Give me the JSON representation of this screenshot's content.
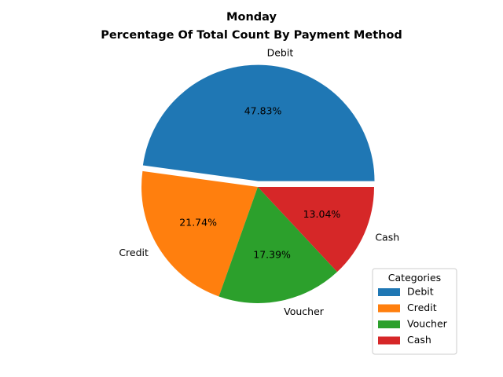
{
  "chart_data": {
    "type": "pie",
    "title": "Monday",
    "subtitle": "Percentage Of Total Count By Payment Method",
    "categories": [
      "Debit",
      "Credit",
      "Voucher",
      "Cash"
    ],
    "values": [
      47.83,
      21.74,
      17.39,
      13.04
    ],
    "percent_labels": [
      "47.83%",
      "21.74%",
      "17.39%",
      "13.04%"
    ],
    "colors": [
      "#1f77b4",
      "#ff7f0e",
      "#2ca02c",
      "#d62728"
    ],
    "exploded": [
      true,
      false,
      false,
      false
    ],
    "legend": {
      "title": "Categories",
      "placement": "lower-right",
      "entries": [
        "Debit",
        "Credit",
        "Voucher",
        "Cash"
      ]
    }
  }
}
